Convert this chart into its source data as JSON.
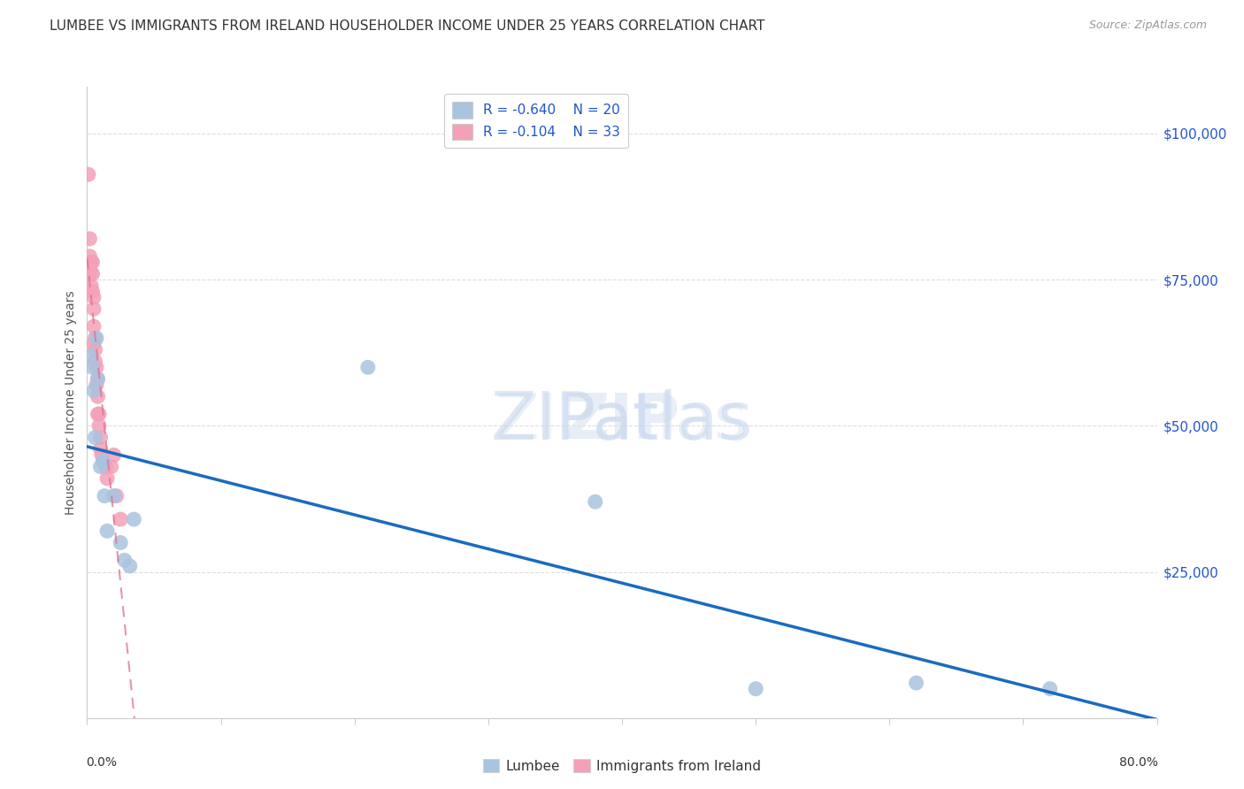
{
  "title": "LUMBEE VS IMMIGRANTS FROM IRELAND HOUSEHOLDER INCOME UNDER 25 YEARS CORRELATION CHART",
  "source": "Source: ZipAtlas.com",
  "ylabel": "Householder Income Under 25 years",
  "ytick_labels": [
    "",
    "$25,000",
    "$50,000",
    "$75,000",
    "$100,000"
  ],
  "ytick_values": [
    0,
    25000,
    50000,
    75000,
    100000
  ],
  "xlim": [
    0.0,
    0.8
  ],
  "ylim": [
    0,
    108000
  ],
  "lumbee_label": "Lumbee",
  "ireland_label": "Immigrants from Ireland",
  "lumbee_R": "-0.640",
  "lumbee_N": "20",
  "ireland_R": "-0.104",
  "ireland_N": "33",
  "lumbee_color": "#a8c4e0",
  "ireland_color": "#f4a0b8",
  "lumbee_line_color": "#1a6bbf",
  "ireland_line_color": "#e07090",
  "background_color": "#ffffff",
  "grid_color": "#dddddd",
  "lumbee_x": [
    0.003,
    0.004,
    0.005,
    0.006,
    0.007,
    0.008,
    0.01,
    0.012,
    0.013,
    0.015,
    0.02,
    0.025,
    0.028,
    0.032,
    0.035,
    0.21,
    0.38,
    0.5,
    0.62,
    0.72
  ],
  "lumbee_y": [
    62000,
    60000,
    56000,
    48000,
    65000,
    58000,
    43000,
    44000,
    38000,
    32000,
    38000,
    30000,
    27000,
    26000,
    34000,
    60000,
    37000,
    5000,
    6000,
    5000
  ],
  "ireland_x": [
    0.001,
    0.002,
    0.002,
    0.003,
    0.003,
    0.003,
    0.004,
    0.004,
    0.004,
    0.005,
    0.005,
    0.005,
    0.005,
    0.006,
    0.006,
    0.006,
    0.007,
    0.007,
    0.008,
    0.008,
    0.008,
    0.009,
    0.009,
    0.01,
    0.01,
    0.011,
    0.012,
    0.014,
    0.015,
    0.018,
    0.02,
    0.022,
    0.025
  ],
  "ireland_y": [
    93000,
    82000,
    79000,
    78000,
    76000,
    74000,
    78000,
    76000,
    73000,
    72000,
    70000,
    67000,
    64000,
    65000,
    63000,
    61000,
    60000,
    57000,
    58000,
    55000,
    52000,
    52000,
    50000,
    48000,
    46000,
    45000,
    44000,
    43000,
    41000,
    43000,
    45000,
    38000,
    34000
  ]
}
